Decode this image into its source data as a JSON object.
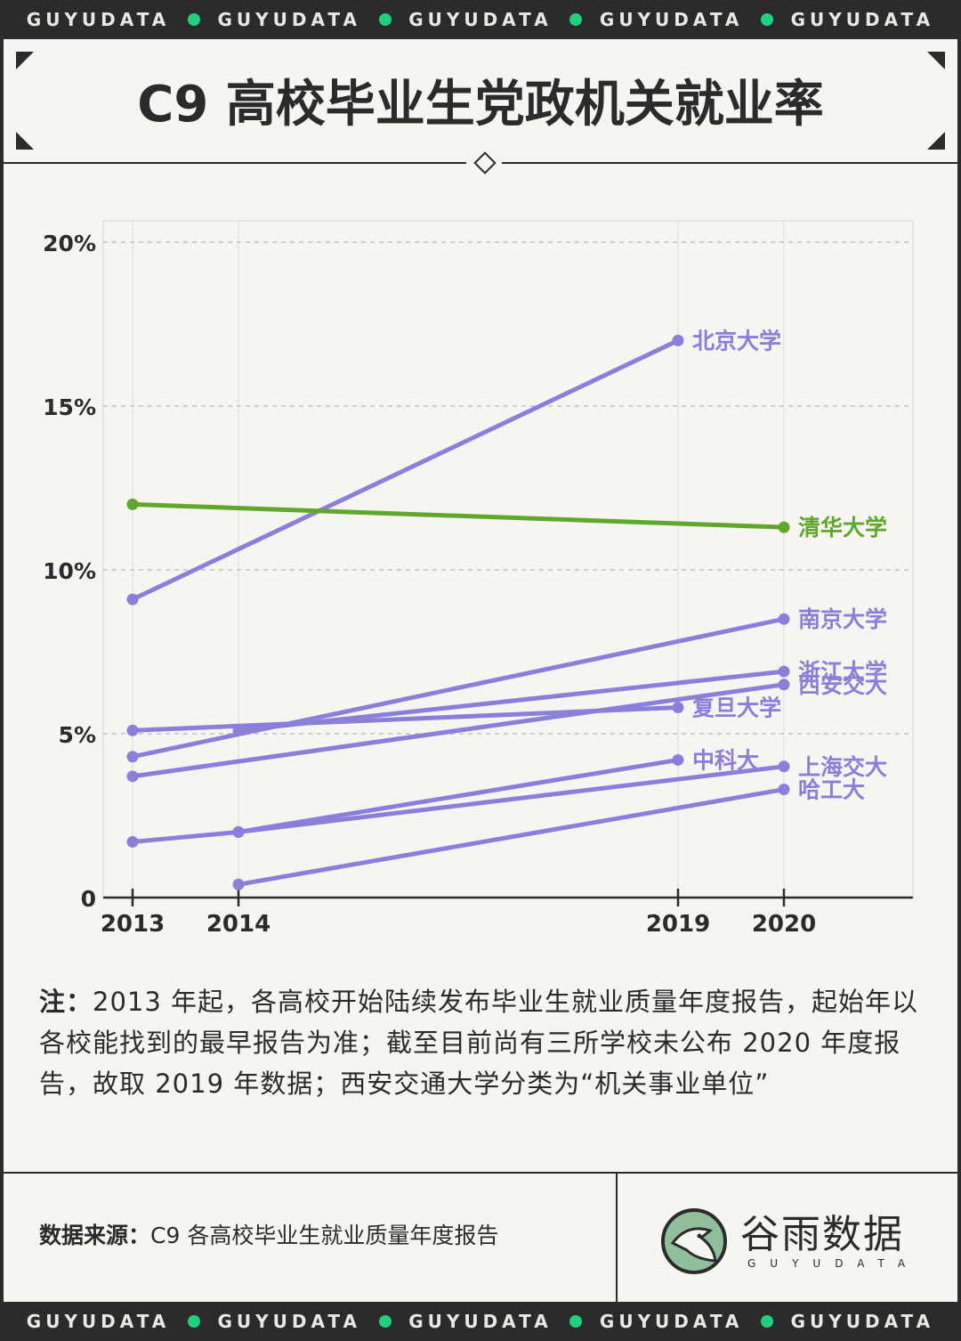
{
  "banner": {
    "word": "GUYUDATA",
    "count": 5
  },
  "title": "C9 高校毕业生党政机关就业率",
  "chart_data": {
    "type": "line",
    "x_ticks": [
      "2013",
      "2014",
      "2019",
      "2020"
    ],
    "y_ticks": [
      "0",
      "5%",
      "10%",
      "15%",
      "20%"
    ],
    "ylim": [
      0,
      20
    ],
    "grid": "dashed horizontal",
    "series": [
      {
        "name": "北京大学",
        "color": "#8b7fdc",
        "points": [
          [
            2013,
            9.1
          ],
          [
            2019,
            17.0
          ]
        ],
        "label_at": 2019
      },
      {
        "name": "清华大学",
        "color": "#5fa82b",
        "points": [
          [
            2013,
            12.0
          ],
          [
            2020,
            11.3
          ]
        ],
        "label_at": 2020
      },
      {
        "name": "南京大学",
        "color": "#8b7fdc",
        "points": [
          [
            2013,
            4.3
          ],
          [
            2020,
            8.5
          ]
        ],
        "label_at": 2020
      },
      {
        "name": "浙江大学",
        "color": "#8b7fdc",
        "points": [
          [
            2014,
            5.1
          ],
          [
            2020,
            6.9
          ]
        ],
        "label_at": 2020
      },
      {
        "name": "西安交大",
        "color": "#8b7fdc",
        "points": [
          [
            2013,
            3.7
          ],
          [
            2020,
            6.5
          ]
        ],
        "label_at": 2020
      },
      {
        "name": "复旦大学",
        "color": "#8b7fdc",
        "points": [
          [
            2013,
            5.1
          ],
          [
            2019,
            5.8
          ]
        ],
        "label_at": 2019
      },
      {
        "name": "中科大",
        "color": "#8b7fdc",
        "points": [
          [
            2013,
            1.7
          ],
          [
            2014,
            2.0
          ],
          [
            2019,
            4.2
          ]
        ],
        "label_at": 2019
      },
      {
        "name": "上海交大",
        "color": "#8b7fdc",
        "points": [
          [
            2014,
            2.0
          ],
          [
            2020,
            4.0
          ]
        ],
        "label_at": 2020
      },
      {
        "name": "哈工大",
        "color": "#8b7fdc",
        "points": [
          [
            2014,
            0.4
          ],
          [
            2020,
            3.3
          ]
        ],
        "label_at": 2020
      }
    ]
  },
  "note": {
    "label": "注：",
    "text": "2013 年起，各高校开始陆续发布毕业生就业质量年度报告，起始年以各校能找到的最早报告为准；截至目前尚有三所学校未公布 2020 年度报告，故取 2019 年数据；西安交通大学分类为“机关事业单位”"
  },
  "source": {
    "label": "数据来源：",
    "text": "C9 各高校毕业生就业质量年度报告"
  },
  "logo": {
    "name": "谷雨数据",
    "sub": "GUYUDATA"
  }
}
